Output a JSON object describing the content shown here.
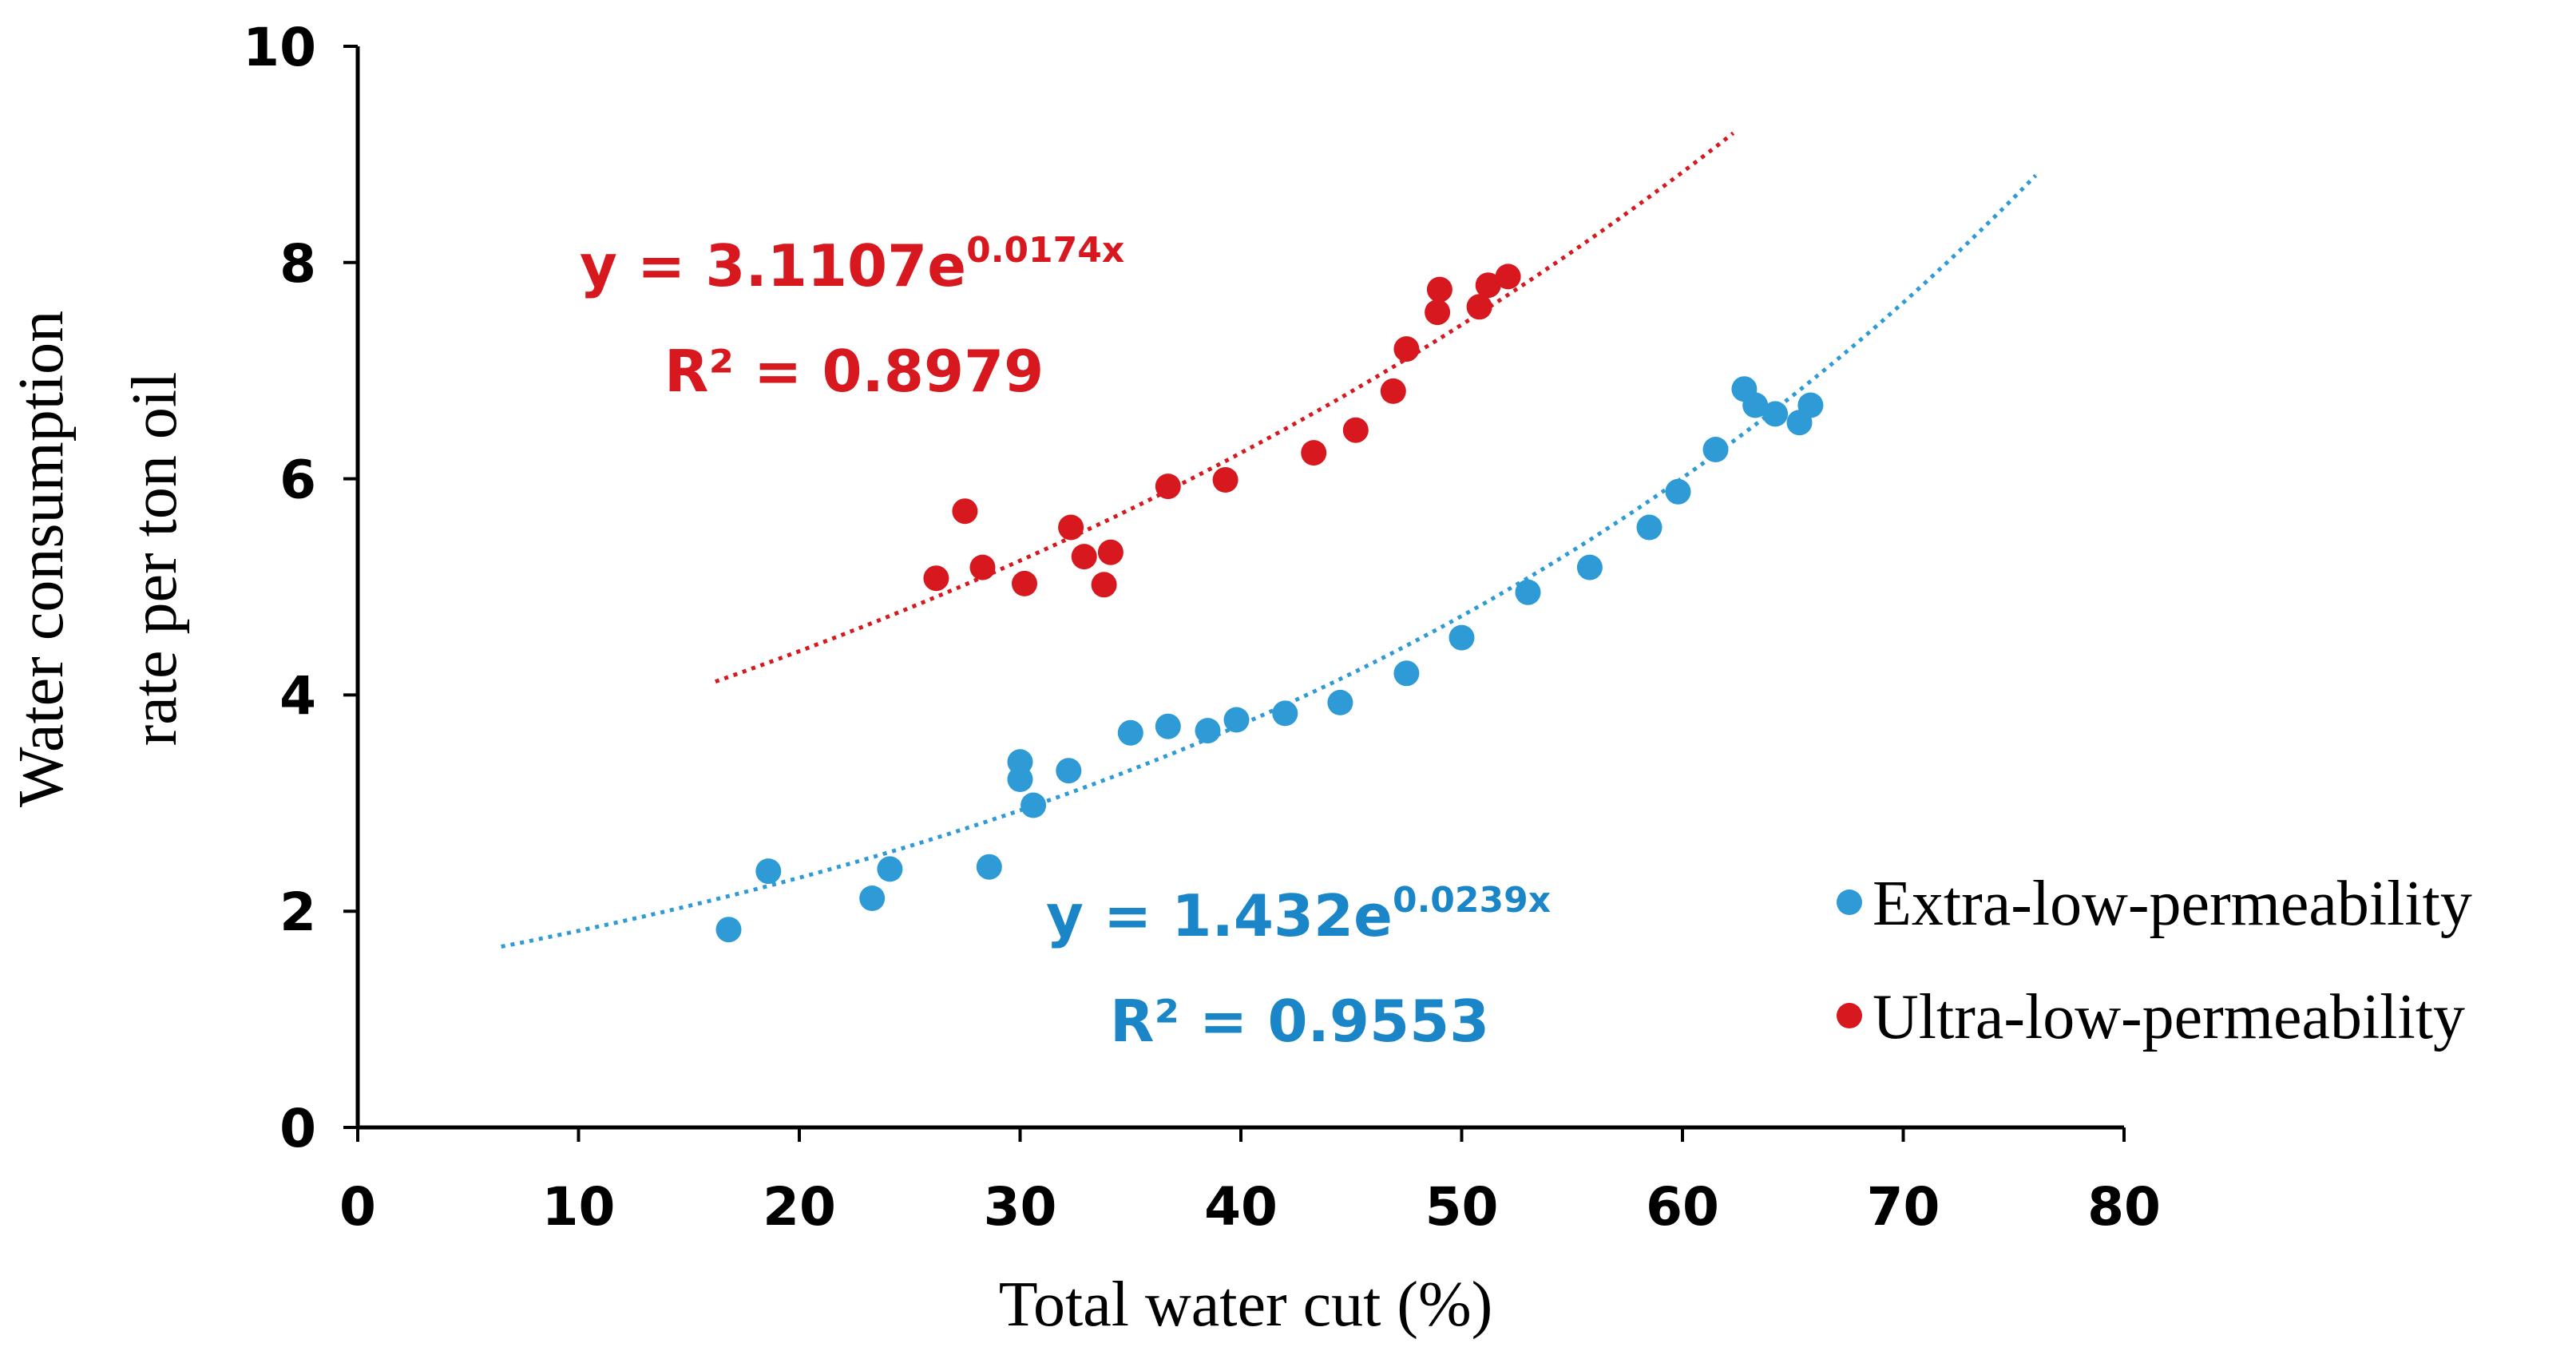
{
  "chart_data": {
    "type": "scatter",
    "title": "",
    "xlabel": "Total water cut (%)",
    "ylabel_line1": "Water consumption",
    "ylabel_line2": "rate per ton oil",
    "xlim": [
      0,
      80
    ],
    "ylim": [
      0,
      10
    ],
    "x_ticks": [
      "0",
      "10",
      "20",
      "30",
      "40",
      "50",
      "60",
      "70",
      "80"
    ],
    "y_ticks": [
      "0",
      "2",
      "4",
      "6",
      "8",
      "10"
    ],
    "grid": false,
    "legend_position": "bottom-right",
    "series": [
      {
        "name": "Extra-low-permeability",
        "color": "#2e9bd6",
        "trend": {
          "a": 1.432,
          "b": 0.0239,
          "x_range": [
            6.5,
            76
          ]
        },
        "equation": {
          "base": "y = 1.432e",
          "exp": "0.0239x",
          "r2": "R² = 0.9553",
          "color": "#1a86c8"
        },
        "points": [
          [
            16.8,
            1.83
          ],
          [
            18.6,
            2.37
          ],
          [
            23.3,
            2.12
          ],
          [
            24.1,
            2.39
          ],
          [
            28.6,
            2.41
          ],
          [
            30.0,
            3.38
          ],
          [
            30.0,
            3.22
          ],
          [
            30.6,
            2.98
          ],
          [
            32.2,
            3.3
          ],
          [
            35.0,
            3.65
          ],
          [
            36.7,
            3.71
          ],
          [
            38.5,
            3.67
          ],
          [
            39.8,
            3.77
          ],
          [
            42.0,
            3.83
          ],
          [
            44.5,
            3.93
          ],
          [
            47.5,
            4.2
          ],
          [
            50.0,
            4.53
          ],
          [
            53.0,
            4.95
          ],
          [
            55.8,
            5.18
          ],
          [
            58.5,
            5.55
          ],
          [
            59.8,
            5.88
          ],
          [
            61.5,
            6.27
          ],
          [
            62.8,
            6.83
          ],
          [
            63.3,
            6.68
          ],
          [
            64.2,
            6.6
          ],
          [
            65.3,
            6.52
          ],
          [
            65.8,
            6.68
          ]
        ]
      },
      {
        "name": "Ultra-low-permeability",
        "color": "#d8181f",
        "trend": {
          "a": 3.1107,
          "b": 0.0174,
          "x_range": [
            16.2,
            62.3
          ]
        },
        "equation": {
          "base": "y = 3.1107e",
          "exp": "0.0174x",
          "r2": "R² = 0.8979",
          "color": "#d8181f"
        },
        "points": [
          [
            26.2,
            5.08
          ],
          [
            27.5,
            5.7
          ],
          [
            28.3,
            5.18
          ],
          [
            30.2,
            5.03
          ],
          [
            32.3,
            5.55
          ],
          [
            32.9,
            5.28
          ],
          [
            33.8,
            5.02
          ],
          [
            34.1,
            5.32
          ],
          [
            36.7,
            5.93
          ],
          [
            39.3,
            5.99
          ],
          [
            43.3,
            6.24
          ],
          [
            45.2,
            6.45
          ],
          [
            46.9,
            6.81
          ],
          [
            47.5,
            7.2
          ],
          [
            48.9,
            7.54
          ],
          [
            49.0,
            7.75
          ],
          [
            50.8,
            7.59
          ],
          [
            51.2,
            7.79
          ],
          [
            52.1,
            7.87
          ]
        ]
      }
    ]
  }
}
